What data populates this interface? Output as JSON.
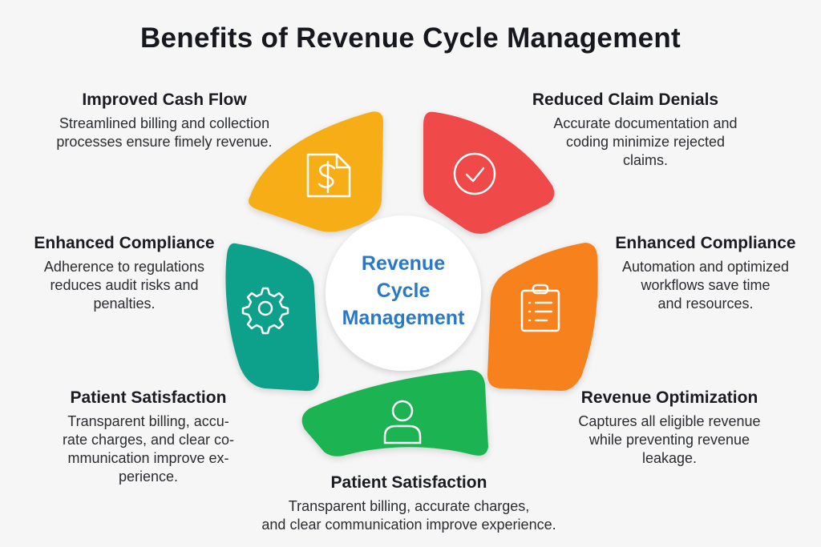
{
  "title": "Benefits of Revenue Cycle Management",
  "center": {
    "lines": [
      "Revenue",
      "Cycle",
      "Management"
    ],
    "color": "#2a78c8"
  },
  "segments": [
    {
      "id": "improved-cash-flow",
      "heading": "Improved Cash Flow",
      "body": [
        "Streamlined billing and collection",
        "processes ensure fimely revenue."
      ],
      "color": "#f7ae14",
      "icon": "dollar-document-icon"
    },
    {
      "id": "reduced-claim-denials",
      "heading": "Reduced Claim Denials",
      "body": [
        "Accurate documentation and",
        "coding minimize rejected",
        "claims."
      ],
      "color": "#ef4848",
      "icon": "check-circle-icon"
    },
    {
      "id": "enhanced-compliance-left",
      "heading": "Enhanced Compliance",
      "body": [
        "Adherence to regulations",
        "reduces audit risks and",
        "penalties."
      ],
      "color": "#0fa08a",
      "icon": "gear-icon"
    },
    {
      "id": "enhanced-compliance-right",
      "heading": "Enhanced Compliance",
      "body": [
        "Automation and optimized",
        "workflows save time",
        "and resources."
      ],
      "color": "#f7811f",
      "icon": "clipboard-list-icon"
    },
    {
      "id": "patient-satisfaction-left",
      "heading": "Patient Satisfaction",
      "body": [
        "Transparent billing, accu-",
        "rate charges, and clear co-",
        "mmunication improve ex-",
        "perience."
      ],
      "color": "#1fb352",
      "icon": "user-icon"
    },
    {
      "id": "revenue-optimization",
      "heading": "Revenue Optimization",
      "body": [
        "Captures all eligible revenue",
        "while preventing revenue",
        "leakage."
      ]
    },
    {
      "id": "patient-satisfaction-bottom",
      "heading": "Patient Satisfaction",
      "body": [
        "Transparent billing, accurate charges,",
        "and clear communication improve experience."
      ]
    }
  ]
}
